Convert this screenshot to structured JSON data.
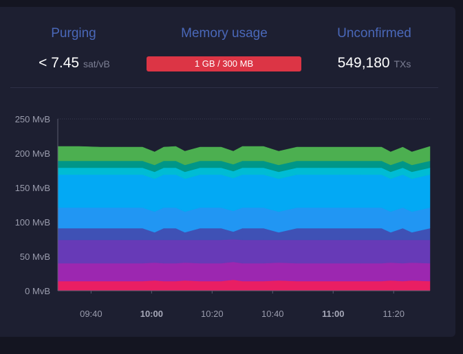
{
  "stats": {
    "purging": {
      "title": "Purging",
      "value": "< 7.45",
      "unit": "sat/vB"
    },
    "memory": {
      "title": "Memory usage",
      "value": "1 GB / 300 MB",
      "fill_fraction": 1.0,
      "color": "#dc3545"
    },
    "unconfirmed": {
      "title": "Unconfirmed",
      "value": "549,180",
      "unit": "TXs"
    }
  },
  "chart_data": {
    "type": "area",
    "stacked": true,
    "y_unit": "MvB",
    "ylim": [
      0,
      250
    ],
    "y_ticks": [
      {
        "value": 0,
        "label": "0 MvB"
      },
      {
        "value": 50,
        "label": "50 MvB"
      },
      {
        "value": 100,
        "label": "100 MvB"
      },
      {
        "value": 150,
        "label": "150 MvB"
      },
      {
        "value": 200,
        "label": "200 MvB"
      },
      {
        "value": 250,
        "label": "250 MvB"
      }
    ],
    "grid_y_at": [
      250
    ],
    "x_ticks": [
      {
        "label": "09:40",
        "bold": false
      },
      {
        "label": "10:00",
        "bold": true
      },
      {
        "label": "10:20",
        "bold": false
      },
      {
        "label": "10:40",
        "bold": false
      },
      {
        "label": "11:00",
        "bold": true
      },
      {
        "label": "11:20",
        "bold": false
      }
    ],
    "x_tick_minutes": [
      580,
      600,
      620,
      640,
      660,
      680
    ],
    "x_range_minutes": [
      569,
      692
    ],
    "times": [
      "09:29",
      "09:36",
      "09:43",
      "09:50",
      "09:57",
      "10:01",
      "10:04",
      "10:08",
      "10:11",
      "10:16",
      "10:23",
      "10:27",
      "10:30",
      "10:37",
      "10:42",
      "10:48",
      "10:55",
      "11:02",
      "11:09",
      "11:16",
      "11:19",
      "11:23",
      "11:26",
      "11:32"
    ],
    "series": [
      {
        "color": "#e91e63",
        "values": [
          14,
          14,
          14,
          14,
          14,
          15,
          14,
          14,
          15,
          14,
          14,
          16,
          14,
          14,
          15,
          14,
          14,
          14,
          14,
          14,
          15,
          14,
          15,
          14
        ]
      },
      {
        "color": "#9c27b0",
        "values": [
          26,
          26,
          26,
          26,
          26,
          26,
          26,
          26,
          26,
          26,
          26,
          26,
          26,
          26,
          26,
          26,
          26,
          26,
          26,
          26,
          26,
          26,
          26,
          26
        ]
      },
      {
        "color": "#673ab7",
        "values": [
          34,
          34,
          34,
          34,
          34,
          33,
          34,
          34,
          33,
          34,
          34,
          33,
          34,
          34,
          33,
          34,
          34,
          34,
          34,
          34,
          33,
          34,
          33,
          34
        ]
      },
      {
        "color": "#3f51b5",
        "values": [
          17,
          17,
          17,
          17,
          17,
          11,
          17,
          17,
          11,
          17,
          17,
          11,
          17,
          17,
          11,
          17,
          17,
          17,
          17,
          17,
          11,
          17,
          11,
          17
        ]
      },
      {
        "color": "#2196f3",
        "values": [
          30,
          30,
          30,
          30,
          30,
          30,
          30,
          30,
          30,
          30,
          30,
          30,
          30,
          30,
          30,
          30,
          30,
          30,
          30,
          30,
          30,
          30,
          30,
          30
        ]
      },
      {
        "color": "#03a9f4",
        "values": [
          48,
          48,
          48,
          48,
          48,
          48,
          48,
          48,
          48,
          48,
          48,
          48,
          48,
          48,
          48,
          48,
          48,
          48,
          48,
          48,
          48,
          48,
          48,
          48
        ]
      },
      {
        "color": "#00bcd4",
        "values": [
          10,
          10,
          10,
          10,
          10,
          10,
          10,
          10,
          10,
          10,
          10,
          10,
          10,
          10,
          10,
          10,
          10,
          10,
          10,
          10,
          10,
          10,
          10,
          10
        ]
      },
      {
        "color": "#009688",
        "values": [
          10,
          10,
          10,
          10,
          10,
          10,
          10,
          10,
          10,
          10,
          10,
          10,
          10,
          10,
          10,
          10,
          10,
          10,
          10,
          10,
          10,
          10,
          10,
          10
        ]
      },
      {
        "color": "#4caf50",
        "values": [
          21,
          21,
          20,
          20,
          20,
          19,
          20,
          21,
          20,
          20,
          20,
          19,
          21,
          21,
          20,
          20,
          20,
          20,
          20,
          20,
          19,
          20,
          19,
          21
        ]
      }
    ]
  }
}
